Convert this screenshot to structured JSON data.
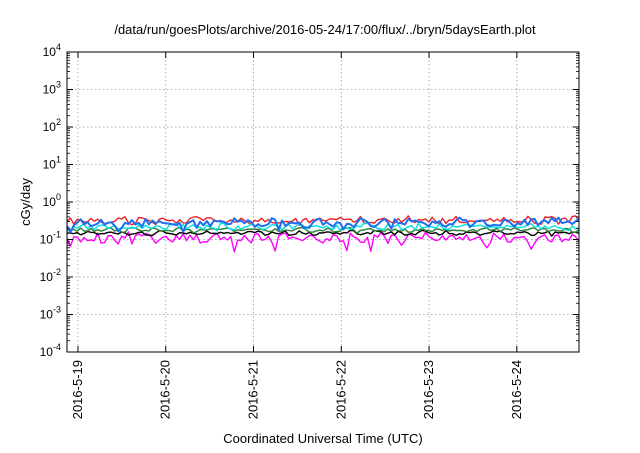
{
  "chart_data": {
    "type": "line",
    "title": "/data/run/goesPlots/archive/2016-05-24/17:00/flux/../bryn/5daysEarth.plot",
    "xlabel": "Coordinated Universal Time (UTC)",
    "ylabel": "cGy/day",
    "yscale": "log",
    "ylim": [
      0.0001,
      10000
    ],
    "yticks": [
      {
        "base": "10",
        "exp": "4",
        "value": 10000
      },
      {
        "base": "10",
        "exp": "3",
        "value": 1000
      },
      {
        "base": "10",
        "exp": "2",
        "value": 100
      },
      {
        "base": "10",
        "exp": "1",
        "value": 10
      },
      {
        "base": "10",
        "exp": "0",
        "value": 1
      },
      {
        "base": "10",
        "exp": "-1",
        "value": 0.1
      },
      {
        "base": "10",
        "exp": "-2",
        "value": 0.01
      },
      {
        "base": "10",
        "exp": "-3",
        "value": 0.001
      },
      {
        "base": "10",
        "exp": "-4",
        "value": 0.0001
      }
    ],
    "xlim": [
      "2016-05-18 21:00",
      "2016-05-24 17:00"
    ],
    "xticks": [
      {
        "label": "2016-5-19",
        "date": "2016-05-19 00:00"
      },
      {
        "label": "2016-5-20",
        "date": "2016-05-20 00:00"
      },
      {
        "label": "2016-5-21",
        "date": "2016-05-21 00:00"
      },
      {
        "label": "2016-5-22",
        "date": "2016-05-22 00:00"
      },
      {
        "label": "2016-5-23",
        "date": "2016-05-23 00:00"
      },
      {
        "label": "2016-5-24",
        "date": "2016-05-24 00:00"
      }
    ],
    "grid": true,
    "legend": "none",
    "series": [
      {
        "color": "#e8232b",
        "baseline": 0.33,
        "jitter": 0.09,
        "spikes": 0.04,
        "seed": 7
      },
      {
        "color": "#ff00ff",
        "baseline": 0.11,
        "jitter": 0.12,
        "spikes": 0.22,
        "seed": 13
      },
      {
        "color": "#000000",
        "baseline": 0.15,
        "jitter": 0.05,
        "spikes": 0.02,
        "seed": 21
      },
      {
        "color": "#2e7d32",
        "baseline": 0.18,
        "jitter": 0.05,
        "spikes": 0.02,
        "seed": 29
      },
      {
        "color": "#00e0e0",
        "baseline": 0.22,
        "jitter": 0.07,
        "spikes": 0.05,
        "seed": 37
      },
      {
        "color": "#1e6ff0",
        "baseline": 0.28,
        "jitter": 0.1,
        "spikes": 0.15,
        "seed": 43
      }
    ]
  }
}
